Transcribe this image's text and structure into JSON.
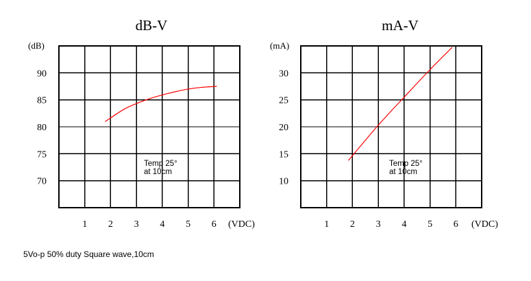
{
  "footer_note": "5Vo-p 50%  duty Square wave,10cm",
  "chart_data": [
    {
      "type": "line",
      "title": "dB-V",
      "ylabel": "(dB)",
      "xlabel": "(VDC)",
      "x_ticks": [
        "1",
        "2",
        "3",
        "4",
        "5",
        "6"
      ],
      "y_ticks": [
        "70",
        "75",
        "80",
        "85",
        "90"
      ],
      "grid": true,
      "annotation": [
        "Temp 25°",
        "at 10cm"
      ],
      "color": "#ff0000",
      "series": [
        {
          "x": [
            1.8,
            2.5,
            3,
            3.5,
            4,
            4.5,
            5,
            5.5,
            6.1
          ],
          "y": [
            81,
            83.2,
            84.3,
            85.2,
            85.9,
            86.5,
            87,
            87.3,
            87.5
          ]
        }
      ]
    },
    {
      "type": "line",
      "title": "mA-V",
      "ylabel": "(mA)",
      "xlabel": "(VDC)",
      "x_ticks": [
        "1",
        "2",
        "3",
        "4",
        "5",
        "6"
      ],
      "y_ticks": [
        "10",
        "15",
        "20",
        "25",
        "30"
      ],
      "grid": true,
      "annotation": [
        "Temp 25°",
        "at 10cm"
      ],
      "color": "#ff0000",
      "series": [
        {
          "x": [
            1.85,
            3,
            4,
            5,
            5.85
          ],
          "y": [
            13.8,
            20.3,
            25.5,
            30.6,
            34.7
          ]
        }
      ]
    }
  ]
}
